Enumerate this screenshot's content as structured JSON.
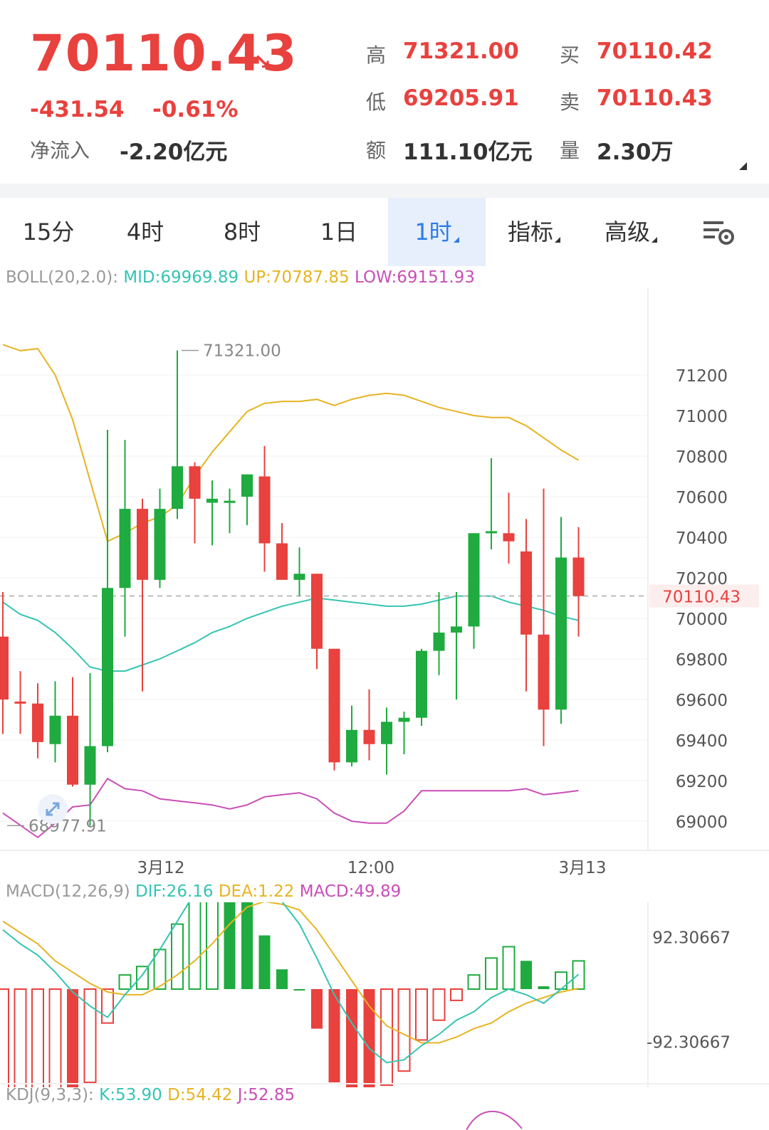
{
  "header": {
    "price": "70110.43",
    "change": "-431.54",
    "change_pct": "-0.61%",
    "net_inflow_label": "净流入",
    "net_inflow": "-2.20亿元",
    "high_label": "高",
    "high": "71321.00",
    "low_label": "低",
    "low": "69205.91",
    "amount_label": "额",
    "amount": "111.10亿元",
    "bid_label": "买",
    "bid": "70110.42",
    "ask_label": "卖",
    "ask": "70110.43",
    "volume_label": "量",
    "volume": "2.30万"
  },
  "tabs": [
    {
      "label": "15分",
      "active": false,
      "dropdown": false
    },
    {
      "label": "4时",
      "active": false,
      "dropdown": false
    },
    {
      "label": "8时",
      "active": false,
      "dropdown": false
    },
    {
      "label": "1日",
      "active": false,
      "dropdown": false
    },
    {
      "label": "1时",
      "active": true,
      "dropdown": true
    },
    {
      "label": "指标",
      "active": false,
      "dropdown": true
    },
    {
      "label": "高级",
      "active": false,
      "dropdown": true
    }
  ],
  "settings_icon": "chart-settings-icon",
  "boll": {
    "name": "BOLL(20,2.0):",
    "mid": "MID:69969.89",
    "up": "UP:70787.85",
    "low": "LOW:69151.93"
  },
  "macd_legend": {
    "name": "MACD(12,26,9)",
    "dif": "DIF:26.16",
    "dea": "DEA:1.22",
    "macd": "MACD:49.89"
  },
  "kdj_legend": {
    "name": "KDJ(9,3,3):",
    "k": "K:53.90",
    "d": "D:54.42",
    "j": "J:52.85"
  },
  "colors": {
    "up": "#1fab3f",
    "down": "#e8413e",
    "mid": "#35c4b3",
    "upper": "#e6b423",
    "lower": "#c94fb7",
    "active_tab": "#2e7be6"
  },
  "chart_data": [
    {
      "type": "candlestick",
      "y_ticks": [
        "71200",
        "71000",
        "70800",
        "70600",
        "70400",
        "70200",
        "70000",
        "69800",
        "69600",
        "69400",
        "69200",
        "69000"
      ],
      "ylim": [
        68900,
        71400
      ],
      "x_labels": [
        "3月12",
        "12:00",
        "3月13"
      ],
      "last_price_label": "70110.43",
      "annotations": [
        "71321.00",
        "68977.91"
      ],
      "candles": [
        {
          "o": 69910,
          "h": 70130,
          "l": 69430,
          "c": 69600
        },
        {
          "o": 69590,
          "h": 69740,
          "l": 69430,
          "c": 69580
        },
        {
          "o": 69580,
          "h": 69680,
          "l": 69310,
          "c": 69390
        },
        {
          "o": 69380,
          "h": 69690,
          "l": 69290,
          "c": 69520
        },
        {
          "o": 69520,
          "h": 69710,
          "l": 69170,
          "c": 69180
        },
        {
          "o": 69180,
          "h": 69730,
          "l": 68978,
          "c": 69370
        },
        {
          "o": 69370,
          "h": 70930,
          "l": 69340,
          "c": 70150
        },
        {
          "o": 70150,
          "h": 70880,
          "l": 69910,
          "c": 70540
        },
        {
          "o": 70540,
          "h": 70590,
          "l": 69640,
          "c": 70190
        },
        {
          "o": 70190,
          "h": 70640,
          "l": 70150,
          "c": 70540
        },
        {
          "o": 70540,
          "h": 71321,
          "l": 70490,
          "c": 70750
        },
        {
          "o": 70750,
          "h": 70770,
          "l": 70370,
          "c": 70590
        },
        {
          "o": 70570,
          "h": 70680,
          "l": 70360,
          "c": 70590
        },
        {
          "o": 70580,
          "h": 70640,
          "l": 70420,
          "c": 70580
        },
        {
          "o": 70600,
          "h": 70710,
          "l": 70460,
          "c": 70710
        },
        {
          "o": 70700,
          "h": 70850,
          "l": 70230,
          "c": 70370
        },
        {
          "o": 70370,
          "h": 70470,
          "l": 70190,
          "c": 70190
        },
        {
          "o": 70190,
          "h": 70350,
          "l": 70110,
          "c": 70220
        },
        {
          "o": 70220,
          "h": 70220,
          "l": 69750,
          "c": 69850
        },
        {
          "o": 69850,
          "h": 69850,
          "l": 69250,
          "c": 69290
        },
        {
          "o": 69290,
          "h": 69570,
          "l": 69270,
          "c": 69450
        },
        {
          "o": 69450,
          "h": 69650,
          "l": 69300,
          "c": 69380
        },
        {
          "o": 69380,
          "h": 69560,
          "l": 69230,
          "c": 69490
        },
        {
          "o": 69490,
          "h": 69540,
          "l": 69330,
          "c": 69510
        },
        {
          "o": 69510,
          "h": 69850,
          "l": 69470,
          "c": 69840
        },
        {
          "o": 69840,
          "h": 70130,
          "l": 69720,
          "c": 69930
        },
        {
          "o": 69930,
          "h": 70130,
          "l": 69600,
          "c": 69960
        },
        {
          "o": 69960,
          "h": 70420,
          "l": 69850,
          "c": 70420
        },
        {
          "o": 70420,
          "h": 70790,
          "l": 70340,
          "c": 70430
        },
        {
          "o": 70420,
          "h": 70620,
          "l": 70270,
          "c": 70380
        },
        {
          "o": 70330,
          "h": 70490,
          "l": 69640,
          "c": 69920
        },
        {
          "o": 69920,
          "h": 70640,
          "l": 69370,
          "c": 69550
        },
        {
          "o": 69550,
          "h": 70500,
          "l": 69480,
          "c": 70300
        },
        {
          "o": 70300,
          "h": 70450,
          "l": 69910,
          "c": 70110
        }
      ],
      "upper": [
        71350,
        71320,
        71330,
        71200,
        70980,
        70680,
        70380,
        70420,
        70470,
        70500,
        70560,
        70700,
        70820,
        70920,
        71020,
        71060,
        71070,
        71070,
        71080,
        71050,
        71080,
        71100,
        71110,
        71100,
        71070,
        71040,
        71020,
        71000,
        70990,
        70990,
        70950,
        70890,
        70830,
        70780
      ],
      "mid": [
        70080,
        70020,
        69990,
        69930,
        69850,
        69760,
        69740,
        69740,
        69770,
        69800,
        69840,
        69880,
        69930,
        69960,
        70000,
        70030,
        70060,
        70080,
        70100,
        70090,
        70080,
        70070,
        70060,
        70060,
        70070,
        70090,
        70110,
        70110,
        70110,
        70080,
        70060,
        70040,
        70010,
        69990
      ],
      "lower": [
        69040,
        68980,
        68920,
        68990,
        69070,
        69080,
        69210,
        69160,
        69150,
        69110,
        69100,
        69090,
        69080,
        69060,
        69080,
        69120,
        69130,
        69140,
        69110,
        69040,
        69000,
        68990,
        68990,
        69050,
        69150,
        69150,
        69150,
        69150,
        69150,
        69150,
        69160,
        69130,
        69140,
        69151
      ]
    },
    {
      "type": "bar",
      "y_ticks": [
        "276.92",
        "92.30667",
        "-92.30667",
        "-276.92"
      ],
      "ylim": [
        -276.92,
        276.92
      ],
      "macd": [
        -185,
        -180,
        -180,
        -175,
        -185,
        -165,
        -60,
        25,
        40,
        70,
        115,
        175,
        185,
        175,
        155,
        95,
        35,
        0,
        -70,
        -165,
        -200,
        -205,
        -170,
        -145,
        -90,
        -55,
        -20,
        25,
        55,
        75,
        50,
        5,
        30,
        49.89
      ],
      "dif": [
        105,
        80,
        60,
        30,
        -5,
        -30,
        -50,
        -10,
        25,
        70,
        120,
        170,
        195,
        205,
        205,
        190,
        155,
        115,
        55,
        -10,
        -60,
        -105,
        -130,
        -125,
        -100,
        -80,
        -55,
        -40,
        -15,
        0,
        -10,
        -25,
        0,
        26.16
      ],
      "dea": [
        120,
        100,
        80,
        50,
        30,
        10,
        -5,
        -10,
        -10,
        5,
        25,
        50,
        80,
        115,
        145,
        155,
        150,
        140,
        105,
        60,
        15,
        -30,
        -65,
        -80,
        -95,
        -95,
        -85,
        -70,
        -60,
        -40,
        -25,
        -15,
        -5,
        1.22
      ]
    }
  ]
}
